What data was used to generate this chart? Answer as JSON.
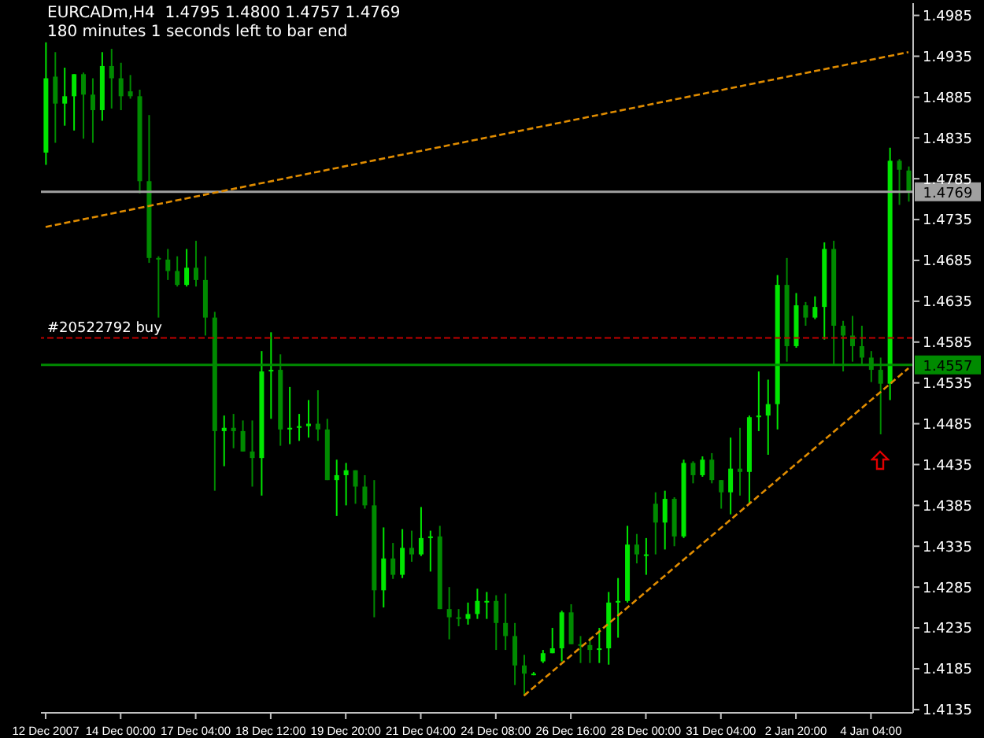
{
  "chart_data": {
    "type": "candlestick",
    "title": "EURCADm,H4  1.4795 1.4800 1.4757 1.4769",
    "subtitle": "180 minutes 1 seconds left to bar end",
    "categories": [
      "12 Dec 2007",
      null,
      null,
      null,
      null,
      null,
      null,
      null,
      "14 Dec 00:00",
      null,
      null,
      null,
      null,
      null,
      null,
      null,
      "17 Dec 04:00",
      null,
      null,
      null,
      null,
      null,
      null,
      null,
      "18 Dec 12:00",
      null,
      null,
      null,
      null,
      null,
      null,
      null,
      "19 Dec 20:00",
      null,
      null,
      null,
      null,
      null,
      null,
      null,
      "21 Dec 04:00",
      null,
      null,
      null,
      null,
      null,
      null,
      null,
      "24 Dec 08:00",
      null,
      null,
      null,
      null,
      null,
      null,
      null,
      "26 Dec 16:00",
      null,
      null,
      null,
      null,
      null,
      null,
      null,
      "28 Dec 00:00",
      null,
      null,
      null,
      null,
      null,
      null,
      null,
      "31 Dec 04:00",
      null,
      null,
      null,
      null,
      null,
      null,
      null,
      "2 Jan 20:00",
      null,
      null,
      null,
      null,
      null,
      null,
      null,
      "4 Jan 04:00",
      null,
      null,
      null,
      null
    ],
    "ohlc": [
      [
        1.4817,
        1.4952,
        1.4802,
        1.4908
      ],
      [
        1.491,
        1.494,
        1.4829,
        1.4877
      ],
      [
        1.4877,
        1.4921,
        1.485,
        1.4886
      ],
      [
        1.4886,
        1.4913,
        1.4844,
        1.4913
      ],
      [
        1.4913,
        1.4915,
        1.4834,
        1.4888
      ],
      [
        1.4888,
        1.4908,
        1.4829,
        1.4869
      ],
      [
        1.4869,
        1.494,
        1.4856,
        1.4923
      ],
      [
        1.4923,
        1.4944,
        1.4871,
        1.4908
      ],
      [
        1.4908,
        1.4927,
        1.4869,
        1.4886
      ],
      [
        1.4892,
        1.4912,
        1.4883,
        1.4886
      ],
      [
        1.4886,
        1.4894,
        1.4767,
        1.4782
      ],
      [
        1.4782,
        1.4863,
        1.4682,
        1.4688
      ],
      [
        1.4688,
        1.469,
        1.4615,
        1.4686
      ],
      [
        1.4686,
        1.4699,
        1.4661,
        1.4672
      ],
      [
        1.4672,
        1.469,
        1.4653,
        1.4655
      ],
      [
        1.4655,
        1.4699,
        1.4653,
        1.4676
      ],
      [
        1.4676,
        1.4709,
        1.4653,
        1.4661
      ],
      [
        1.4661,
        1.469,
        1.4593,
        1.4615
      ],
      [
        1.4615,
        1.4622,
        1.4403,
        1.4476
      ],
      [
        1.4476,
        1.4495,
        1.4433,
        1.448
      ],
      [
        1.448,
        1.4497,
        1.4455,
        1.4476
      ],
      [
        1.4476,
        1.4489,
        1.4451,
        1.4451
      ],
      [
        1.4451,
        1.4489,
        1.4408,
        1.4443
      ],
      [
        1.4443,
        1.4574,
        1.4397,
        1.4549
      ],
      [
        1.4549,
        1.4597,
        1.4491,
        1.4551
      ],
      [
        1.4551,
        1.457,
        1.4458,
        1.4478
      ],
      [
        1.4478,
        1.453,
        1.446,
        1.448
      ],
      [
        1.448,
        1.4497,
        1.4464,
        1.4482
      ],
      [
        1.4482,
        1.4514,
        1.4468,
        1.4485
      ],
      [
        1.4485,
        1.4526,
        1.4464,
        1.4478
      ],
      [
        1.4478,
        1.4491,
        1.4416,
        1.4416
      ],
      [
        1.4416,
        1.4441,
        1.4372,
        1.4422
      ],
      [
        1.4422,
        1.4437,
        1.4385,
        1.4428
      ],
      [
        1.4428,
        1.4428,
        1.4387,
        1.4408
      ],
      [
        1.4408,
        1.4422,
        1.4381,
        1.4385
      ],
      [
        1.4385,
        1.4416,
        1.4248,
        1.4281
      ],
      [
        1.4281,
        1.4358,
        1.426,
        1.432
      ],
      [
        1.432,
        1.4339,
        1.4295,
        1.43
      ],
      [
        1.43,
        1.4356,
        1.4296,
        1.4333
      ],
      [
        1.4333,
        1.4354,
        1.4316,
        1.4325
      ],
      [
        1.4325,
        1.4383,
        1.4323,
        1.4345
      ],
      [
        1.4345,
        1.4354,
        1.4304,
        1.4347
      ],
      [
        1.4347,
        1.436,
        1.4258,
        1.4258
      ],
      [
        1.4258,
        1.4285,
        1.4221,
        1.4248
      ],
      [
        1.4248,
        1.4258,
        1.4237,
        1.4246
      ],
      [
        1.4246,
        1.4266,
        1.4239,
        1.4252
      ],
      [
        1.4252,
        1.4283,
        1.4246,
        1.4268
      ],
      [
        1.4268,
        1.4279,
        1.4246,
        1.4268
      ],
      [
        1.4268,
        1.4275,
        1.4208,
        1.4241
      ],
      [
        1.4241,
        1.4277,
        1.4208,
        1.4225
      ],
      [
        1.4225,
        1.4241,
        1.4165,
        1.4189
      ],
      [
        1.4189,
        1.4202,
        1.4152,
        1.4179
      ],
      [
        1.4179,
        1.4181,
        1.4177,
        1.4179
      ],
      [
        1.4194,
        1.4208,
        1.4192,
        1.4204
      ],
      [
        1.4204,
        1.4235,
        1.4204,
        1.421
      ],
      [
        1.421,
        1.4256,
        1.4194,
        1.4254
      ],
      [
        1.4254,
        1.4264,
        1.4215,
        1.4215
      ],
      [
        1.4215,
        1.4225,
        1.4192,
        1.4214
      ],
      [
        1.4214,
        1.4223,
        1.4192,
        1.4208
      ],
      [
        1.4208,
        1.4235,
        1.4192,
        1.421
      ],
      [
        1.421,
        1.4279,
        1.419,
        1.4266
      ],
      [
        1.4266,
        1.4296,
        1.4223,
        1.4268
      ],
      [
        1.4268,
        1.436,
        1.4266,
        1.4337
      ],
      [
        1.4337,
        1.435,
        1.4314,
        1.4325
      ],
      [
        1.4325,
        1.4345,
        1.43,
        1.4325
      ],
      [
        1.4387,
        1.4401,
        1.4325,
        1.4364
      ],
      [
        1.4364,
        1.4403,
        1.4331,
        1.4393
      ],
      [
        1.4393,
        1.4395,
        1.4335,
        1.4347
      ],
      [
        1.4347,
        1.4441,
        1.4345,
        1.4437
      ],
      [
        1.4437,
        1.4439,
        1.4412,
        1.4422
      ],
      [
        1.4422,
        1.4445,
        1.442,
        1.4441
      ],
      [
        1.4441,
        1.4449,
        1.4412,
        1.4416
      ],
      [
        1.4416,
        1.4416,
        1.4381,
        1.4401
      ],
      [
        1.4401,
        1.4468,
        1.4374,
        1.443
      ],
      [
        1.443,
        1.448,
        1.4397,
        1.4426
      ],
      [
        1.4426,
        1.4495,
        1.4387,
        1.4493
      ],
      [
        1.4493,
        1.4549,
        1.4476,
        1.4495
      ],
      [
        1.4495,
        1.4539,
        1.4447,
        1.4509
      ],
      [
        1.4509,
        1.4667,
        1.4478,
        1.4655
      ],
      [
        1.4655,
        1.4688,
        1.4561,
        1.458
      ],
      [
        1.458,
        1.4645,
        1.4578,
        1.463
      ],
      [
        1.463,
        1.4634,
        1.4605,
        1.4615
      ],
      [
        1.4615,
        1.4641,
        1.4613,
        1.4628
      ],
      [
        1.4628,
        1.4707,
        1.4588,
        1.4699
      ],
      [
        1.4699,
        1.4709,
        1.4557,
        1.4605
      ],
      [
        1.4605,
        1.4611,
        1.4549,
        1.4593
      ],
      [
        1.4593,
        1.4617,
        1.4561,
        1.458
      ],
      [
        1.458,
        1.4605,
        1.4557,
        1.4566
      ],
      [
        1.4566,
        1.4574,
        1.4536,
        1.4551
      ],
      [
        1.4551,
        1.4566,
        1.4472,
        1.4534
      ],
      [
        1.4534,
        1.4823,
        1.4514,
        1.4807
      ],
      [
        1.4807,
        1.4809,
        1.4753,
        1.4796
      ],
      [
        1.4795,
        1.48,
        1.4757,
        1.4769
      ]
    ],
    "colors": [
      "#00e600",
      "#008a00",
      "#00e600",
      "#00e600",
      "#008a00",
      "#008a00",
      "#00e600",
      "#008a00",
      "#008a00",
      "#008a00",
      "#008a00",
      "#008a00",
      "#008a00",
      "#008a00",
      "#008a00",
      "#00e600",
      "#008a00",
      "#008a00",
      "#008a00",
      "#00e600",
      "#008a00",
      "#008a00",
      "#008a00",
      "#00e600",
      "#00e600",
      "#008a00",
      "#00e600",
      "#00e600",
      "#00e600",
      "#008a00",
      "#008a00",
      "#00e600",
      "#00e600",
      "#008a00",
      "#008a00",
      "#008a00",
      "#00e600",
      "#008a00",
      "#00e600",
      "#008a00",
      "#00e600",
      "#00e600",
      "#008a00",
      "#008a00",
      "#008a00",
      "#00e600",
      "#00e600",
      "#00e600",
      "#008a00",
      "#008a00",
      "#008a00",
      "#008a00",
      "#00e600",
      "#00e600",
      "#00e600",
      "#00e600",
      "#008a00",
      "#008a00",
      "#008a00",
      "#00e600",
      "#00e600",
      "#00e600",
      "#00e600",
      "#008a00",
      "#00e600",
      "#008a00",
      "#00e600",
      "#008a00",
      "#00e600",
      "#008a00",
      "#00e600",
      "#008a00",
      "#008a00",
      "#00e600",
      "#008a00",
      "#00e600",
      "#00e600",
      "#00e600",
      "#00e600",
      "#008a00",
      "#00e600",
      "#008a00",
      "#00e600",
      "#00e600",
      "#008a00",
      "#008a00",
      "#008a00",
      "#008a00",
      "#008a00",
      "#008a00",
      "#00e600",
      "#008a00",
      "#008a00"
    ],
    "series": [
      {
        "type": "line",
        "color": "#e08c00",
        "line_style": "dashed",
        "values": [
          1.4726,
          null,
          null,
          null,
          null,
          null,
          null,
          null,
          null,
          null,
          null,
          null,
          null,
          null,
          null,
          null,
          null,
          null,
          null,
          null,
          null,
          null,
          null,
          null,
          null,
          null,
          null,
          null,
          null,
          null,
          null,
          null,
          null,
          null,
          null,
          null,
          null,
          null,
          null,
          null,
          null,
          null,
          null,
          null,
          null,
          null,
          null,
          null,
          null,
          null,
          null,
          null,
          null,
          null,
          null,
          null,
          null,
          null,
          null,
          null,
          null,
          null,
          null,
          null,
          null,
          null,
          null,
          null,
          null,
          null,
          null,
          null,
          null,
          null,
          null,
          null,
          null,
          null,
          null,
          null,
          null,
          null,
          null,
          null,
          null,
          null,
          null,
          null,
          null,
          null,
          null,
          null,
          1.494
        ]
      },
      {
        "type": "line",
        "color": "#e08c00",
        "line_style": "dashed",
        "values": [
          null,
          null,
          null,
          null,
          null,
          null,
          null,
          null,
          null,
          null,
          null,
          null,
          null,
          null,
          null,
          null,
          null,
          null,
          null,
          null,
          null,
          null,
          null,
          null,
          null,
          null,
          null,
          null,
          null,
          null,
          null,
          null,
          null,
          null,
          null,
          null,
          null,
          null,
          null,
          null,
          null,
          null,
          null,
          null,
          null,
          null,
          null,
          null,
          null,
          null,
          null,
          1.4152,
          null,
          null,
          null,
          null,
          null,
          null,
          null,
          null,
          null,
          null,
          null,
          null,
          null,
          null,
          null,
          null,
          null,
          null,
          null,
          null,
          null,
          null,
          null,
          null,
          null,
          null,
          null,
          null,
          null,
          null,
          null,
          null,
          null,
          null,
          null,
          null,
          null,
          null,
          null,
          null,
          1.4553
        ]
      }
    ],
    "ylim": [
      1.4131,
      1.5
    ],
    "yticks": [
      1.4135,
      1.4185,
      1.4235,
      1.4285,
      1.4335,
      1.4385,
      1.4435,
      1.4485,
      1.4535,
      1.4585,
      1.4635,
      1.4685,
      1.4735,
      1.4785,
      1.4835,
      1.4885,
      1.4935,
      1.4985
    ],
    "ref_lines": [
      {
        "axis": "y",
        "value": 1.4769,
        "label": "1.4769",
        "color": "#a0a0a0",
        "line_style": "solid"
      },
      {
        "axis": "y",
        "value": 1.4557,
        "label": "1.4557",
        "color": "#008a00",
        "line_style": "solid"
      },
      {
        "axis": "y",
        "value": 1.459,
        "label": "#20522792 buy",
        "color": "#c00000",
        "line_style": "dashed"
      }
    ]
  }
}
